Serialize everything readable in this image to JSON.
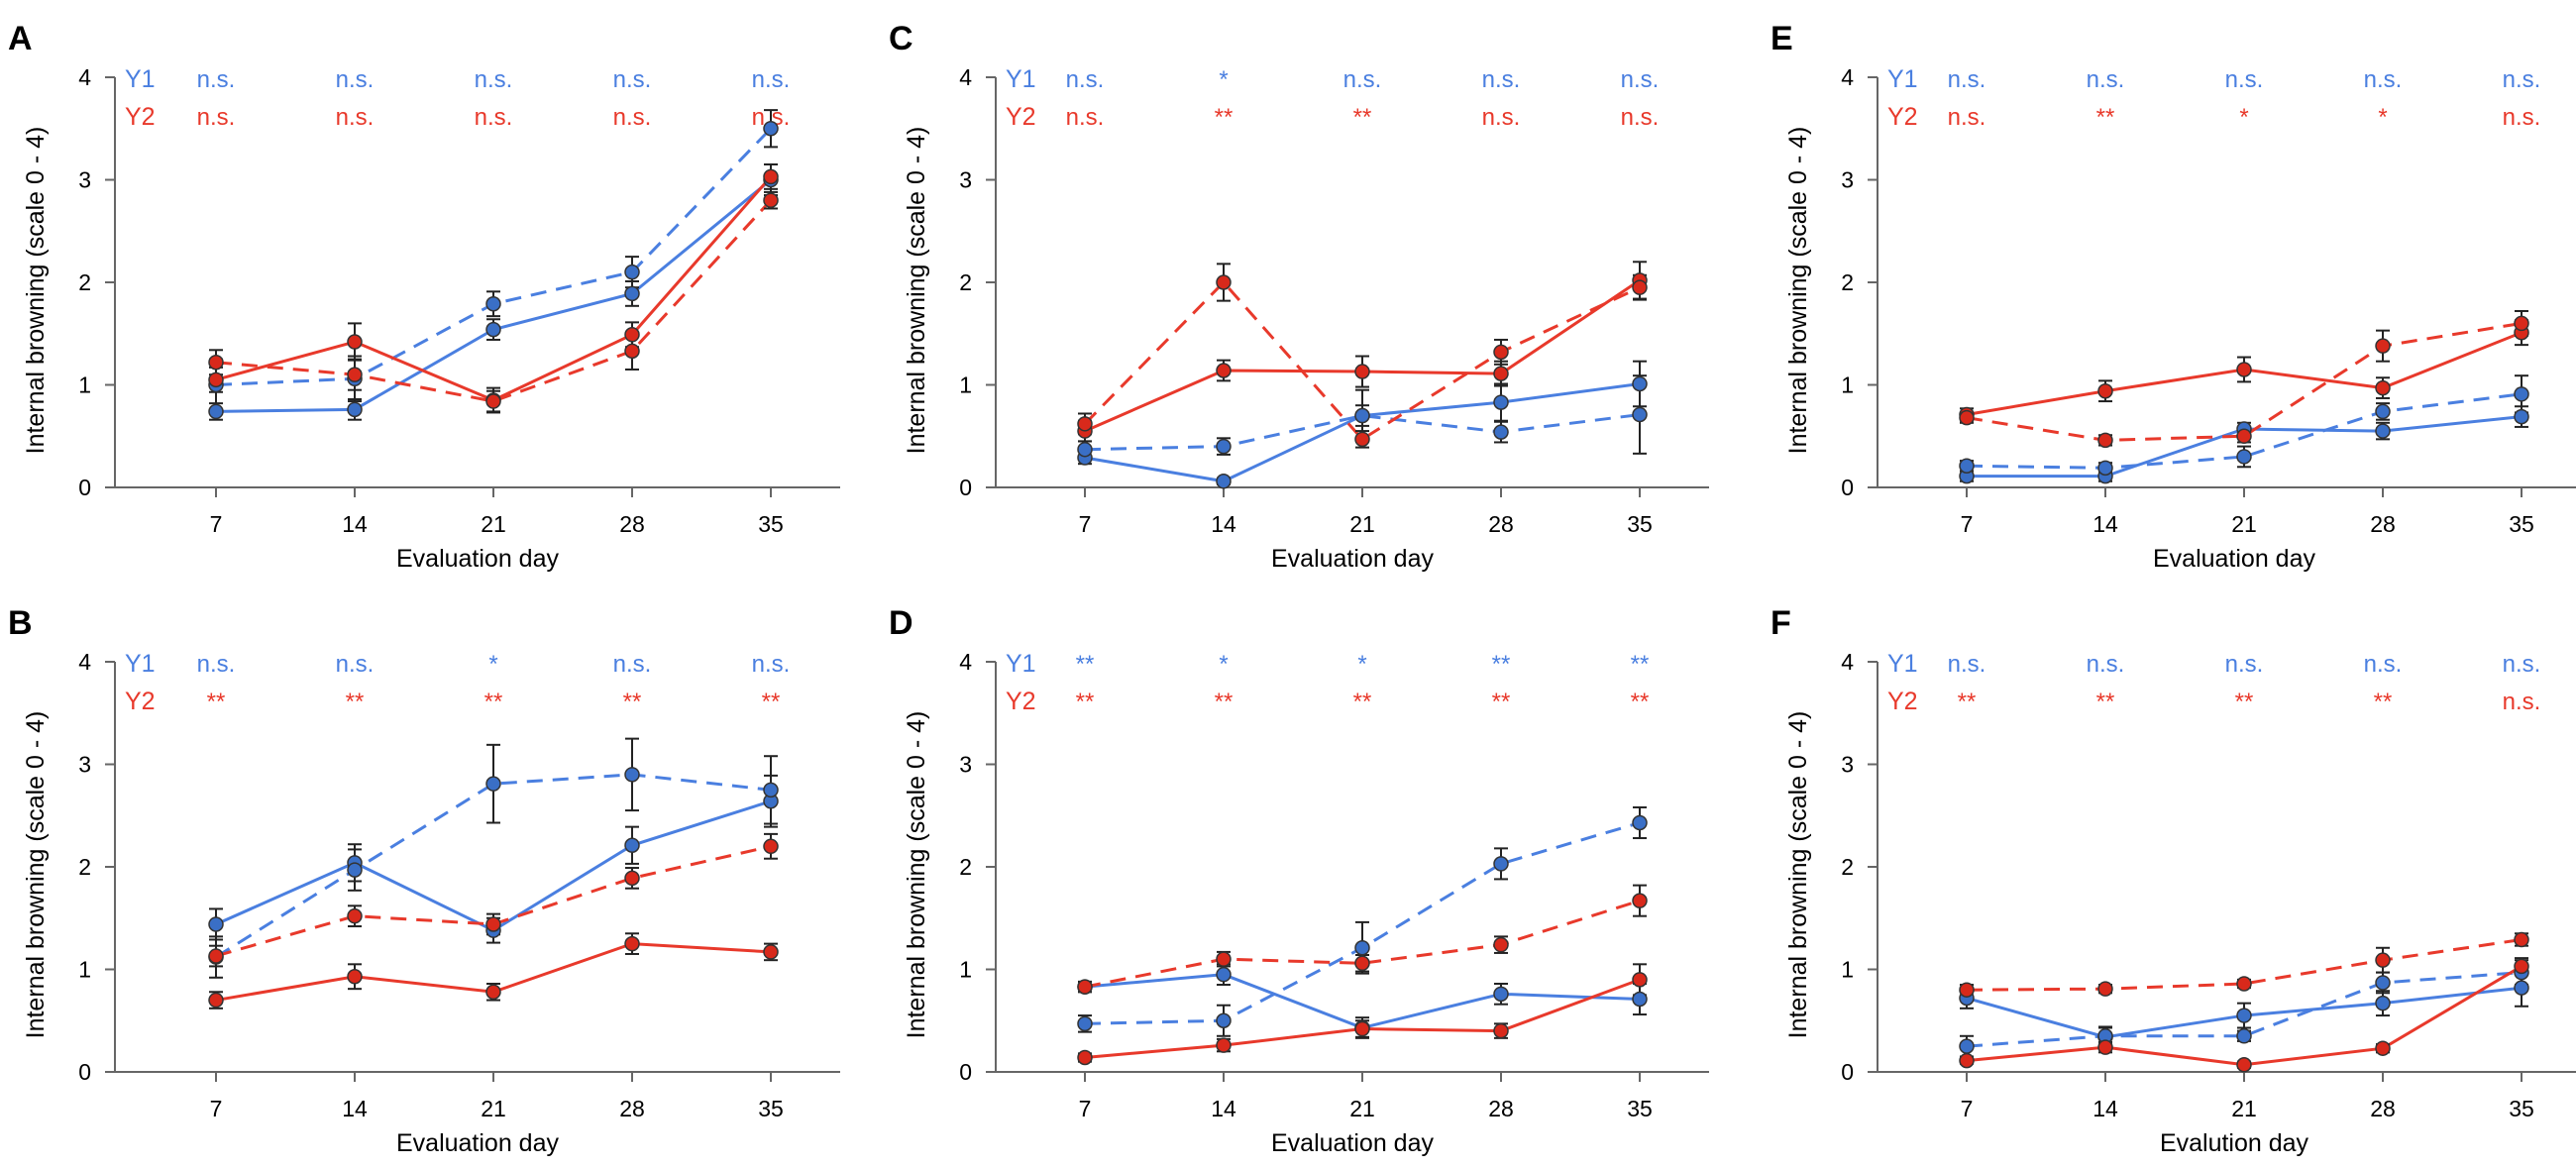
{
  "colors": {
    "y1": "#4a7fe0",
    "y2": "#e8392b",
    "marker_y1": "#3a6fc6",
    "marker_y2": "#d8291b",
    "axis": "#666666"
  },
  "legend_labels": {
    "y1": "Y1",
    "y2": "Y2"
  },
  "chart_data": [
    {
      "panel": "A",
      "type": "line",
      "xlabel": "Evaluation day",
      "ylabel": "Internal browning (scale 0 - 4)",
      "categories": [
        7,
        14,
        21,
        28,
        35
      ],
      "ylim": [
        0,
        4
      ],
      "yticks": [
        "0",
        "1",
        "2",
        "3",
        "4"
      ],
      "significance": {
        "Y1": [
          "n.s.",
          "n.s.",
          "n.s.",
          "n.s.",
          "n.s."
        ],
        "Y2": [
          "n.s.",
          "n.s.",
          "n.s.",
          "n.s.",
          "n.s."
        ]
      },
      "series": [
        {
          "name": "Y1 solid",
          "group": "y1",
          "dashed": false,
          "values": [
            0.74,
            0.76,
            1.54,
            1.89,
            3.0
          ],
          "errors": [
            0.08,
            0.1,
            0.1,
            0.12,
            0.15
          ]
        },
        {
          "name": "Y1 dashed",
          "group": "y1",
          "dashed": true,
          "values": [
            1.0,
            1.06,
            1.79,
            2.1,
            3.5
          ],
          "errors": [
            0.25,
            0.22,
            0.12,
            0.15,
            0.18
          ]
        },
        {
          "name": "Y2 solid",
          "group": "y2",
          "dashed": false,
          "values": [
            1.05,
            1.42,
            0.85,
            1.49,
            3.03
          ],
          "errors": [
            0.12,
            0.18,
            0.12,
            0.12,
            0.12
          ]
        },
        {
          "name": "Y2 dashed",
          "group": "y2",
          "dashed": true,
          "values": [
            1.22,
            1.1,
            0.84,
            1.33,
            2.8
          ],
          "errors": [
            0.12,
            0.15,
            0.1,
            0.18,
            0.08
          ]
        }
      ]
    },
    {
      "panel": "B",
      "type": "line",
      "xlabel": "Evaluation day",
      "ylabel": "Internal browning (scale 0 - 4)",
      "categories": [
        7,
        14,
        21,
        28,
        35
      ],
      "ylim": [
        0,
        4
      ],
      "yticks": [
        "0",
        "1",
        "2",
        "3",
        "4"
      ],
      "significance": {
        "Y1": [
          "n.s.",
          "n.s.",
          "*",
          "n.s.",
          "n.s."
        ],
        "Y2": [
          "**",
          "**",
          "**",
          "**",
          "**"
        ]
      },
      "series": [
        {
          "name": "Y1 solid",
          "group": "y1",
          "dashed": false,
          "values": [
            1.44,
            2.04,
            1.38,
            2.21,
            2.64
          ],
          "errors": [
            0.15,
            0.18,
            0.12,
            0.18,
            0.25
          ]
        },
        {
          "name": "Y1 dashed",
          "group": "y1",
          "dashed": true,
          "values": [
            1.12,
            1.97,
            2.81,
            2.9,
            2.75
          ],
          "errors": [
            0.2,
            0.2,
            0.38,
            0.35,
            0.33
          ]
        },
        {
          "name": "Y2 solid",
          "group": "y2",
          "dashed": false,
          "values": [
            0.7,
            0.93,
            0.78,
            1.25,
            1.17
          ],
          "errors": [
            0.08,
            0.12,
            0.08,
            0.1,
            0.08
          ]
        },
        {
          "name": "Y2 dashed",
          "group": "y2",
          "dashed": true,
          "values": [
            1.13,
            1.52,
            1.44,
            1.89,
            2.2
          ],
          "errors": [
            0.1,
            0.1,
            0.1,
            0.1,
            0.12
          ]
        }
      ]
    },
    {
      "panel": "C",
      "type": "line",
      "xlabel": "Evaluation day",
      "ylabel": "Internal browning (scale 0 - 4)",
      "categories": [
        7,
        14,
        21,
        28,
        35
      ],
      "ylim": [
        0,
        4
      ],
      "yticks": [
        "0",
        "1",
        "2",
        "3",
        "4"
      ],
      "significance": {
        "Y1": [
          "n.s.",
          "*",
          "n.s.",
          "n.s.",
          "n.s."
        ],
        "Y2": [
          "n.s.",
          "**",
          "**",
          "n.s.",
          "n.s."
        ]
      },
      "series": [
        {
          "name": "Y1 solid",
          "group": "y1",
          "dashed": false,
          "values": [
            0.29,
            0.06,
            0.7,
            0.83,
            1.01
          ],
          "errors": [
            0.06,
            0.03,
            0.25,
            0.18,
            0.22
          ]
        },
        {
          "name": "Y1 dashed",
          "group": "y1",
          "dashed": true,
          "values": [
            0.37,
            0.4,
            0.7,
            0.54,
            0.71
          ],
          "errors": [
            0.08,
            0.08,
            0.1,
            0.1,
            0.38
          ]
        },
        {
          "name": "Y2 solid",
          "group": "y2",
          "dashed": false,
          "values": [
            0.55,
            1.14,
            1.13,
            1.11,
            2.02
          ],
          "errors": [
            0.1,
            0.1,
            0.15,
            0.12,
            0.18
          ]
        },
        {
          "name": "Y2 dashed",
          "group": "y2",
          "dashed": true,
          "values": [
            0.62,
            2.0,
            0.47,
            1.32,
            1.95
          ],
          "errors": [
            0.1,
            0.18,
            0.08,
            0.12,
            0.12
          ]
        }
      ]
    },
    {
      "panel": "D",
      "type": "line",
      "xlabel": "Evaluation day",
      "ylabel": "Internal browning (scale 0 - 4)",
      "categories": [
        7,
        14,
        21,
        28,
        35
      ],
      "ylim": [
        0,
        4
      ],
      "yticks": [
        "0",
        "1",
        "2",
        "3",
        "4"
      ],
      "significance": {
        "Y1": [
          "**",
          "*",
          "*",
          "**",
          "**"
        ],
        "Y2": [
          "**",
          "**",
          "**",
          "**",
          "**"
        ]
      },
      "series": [
        {
          "name": "Y1 solid",
          "group": "y1",
          "dashed": false,
          "values": [
            0.83,
            0.95,
            0.43,
            0.76,
            0.71
          ],
          "errors": [
            0.05,
            0.1,
            0.1,
            0.1,
            0.15
          ]
        },
        {
          "name": "Y1 dashed",
          "group": "y1",
          "dashed": true,
          "values": [
            0.47,
            0.5,
            1.21,
            2.03,
            2.43
          ],
          "errors": [
            0.08,
            0.15,
            0.25,
            0.15,
            0.15
          ]
        },
        {
          "name": "Y2 solid",
          "group": "y2",
          "dashed": false,
          "values": [
            0.14,
            0.26,
            0.42,
            0.4,
            0.9
          ],
          "errors": [
            0.04,
            0.06,
            0.08,
            0.07,
            0.15
          ]
        },
        {
          "name": "Y2 dashed",
          "group": "y2",
          "dashed": true,
          "values": [
            0.83,
            1.1,
            1.06,
            1.24,
            1.67
          ],
          "errors": [
            0.05,
            0.07,
            0.08,
            0.08,
            0.15
          ]
        }
      ]
    },
    {
      "panel": "E",
      "type": "line",
      "xlabel": "Evaluation day",
      "ylabel": "Internal browning (scale 0 - 4)",
      "categories": [
        7,
        14,
        21,
        28,
        35
      ],
      "ylim": [
        0,
        4
      ],
      "yticks": [
        "0",
        "1",
        "2",
        "3",
        "4"
      ],
      "significance": {
        "Y1": [
          "n.s.",
          "n.s.",
          "n.s.",
          "n.s.",
          "n.s."
        ],
        "Y2": [
          "n.s.",
          "**",
          "*",
          "*",
          "n.s."
        ]
      },
      "series": [
        {
          "name": "Y1 solid",
          "group": "y1",
          "dashed": false,
          "values": [
            0.11,
            0.11,
            0.57,
            0.55,
            0.69
          ],
          "errors": [
            0.05,
            0.05,
            0.06,
            0.08,
            0.1
          ]
        },
        {
          "name": "Y1 dashed",
          "group": "y1",
          "dashed": true,
          "values": [
            0.21,
            0.19,
            0.3,
            0.74,
            0.91
          ],
          "errors": [
            0.05,
            0.05,
            0.1,
            0.08,
            0.18
          ]
        },
        {
          "name": "Y2 solid",
          "group": "y2",
          "dashed": false,
          "values": [
            0.71,
            0.94,
            1.15,
            0.97,
            1.51
          ],
          "errors": [
            0.06,
            0.1,
            0.12,
            0.1,
            0.12
          ]
        },
        {
          "name": "Y2 dashed",
          "group": "y2",
          "dashed": true,
          "values": [
            0.68,
            0.46,
            0.5,
            1.38,
            1.6
          ],
          "errors": [
            0.05,
            0.05,
            0.06,
            0.15,
            0.12
          ]
        }
      ]
    },
    {
      "panel": "F",
      "type": "line",
      "xlabel": "Evalution day",
      "ylabel": "Internal browning (scale 0 - 4)",
      "categories": [
        7,
        14,
        21,
        28,
        35
      ],
      "ylim": [
        0,
        4
      ],
      "yticks": [
        "0",
        "1",
        "2",
        "3",
        "4"
      ],
      "significance": {
        "Y1": [
          "n.s.",
          "n.s.",
          "n.s.",
          "n.s.",
          "n.s."
        ],
        "Y2": [
          "**",
          "**",
          "**",
          "**",
          "n.s."
        ]
      },
      "series": [
        {
          "name": "Y1 solid",
          "group": "y1",
          "dashed": false,
          "values": [
            0.72,
            0.34,
            0.55,
            0.67,
            0.82
          ],
          "errors": [
            0.1,
            0.1,
            0.12,
            0.12,
            0.18
          ]
        },
        {
          "name": "Y1 dashed",
          "group": "y1",
          "dashed": true,
          "values": [
            0.25,
            0.35,
            0.35,
            0.87,
            0.97
          ],
          "errors": [
            0.1,
            0.08,
            0.05,
            0.1,
            0.12
          ]
        },
        {
          "name": "Y2 solid",
          "group": "y2",
          "dashed": false,
          "values": [
            0.11,
            0.24,
            0.07,
            0.23,
            1.03
          ],
          "errors": [
            0.03,
            0.05,
            0.03,
            0.04,
            0.08
          ]
        },
        {
          "name": "Y2 dashed",
          "group": "y2",
          "dashed": true,
          "values": [
            0.8,
            0.81,
            0.86,
            1.09,
            1.29
          ],
          "errors": [
            0.05,
            0.04,
            0.04,
            0.12,
            0.06
          ]
        }
      ]
    }
  ]
}
